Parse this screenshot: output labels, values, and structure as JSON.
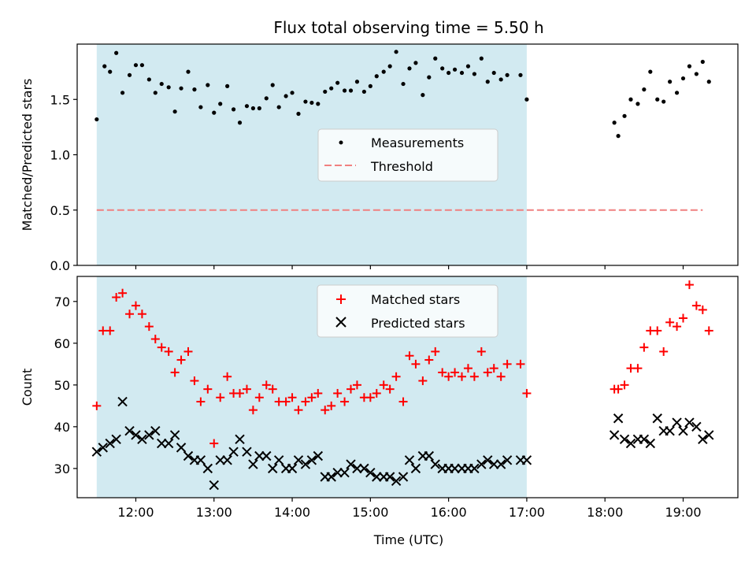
{
  "title": "Flux total observing time = 5.50 h",
  "shade_color": "#add8e6",
  "chart_data": [
    {
      "type": "scatter",
      "ylabel": "Matched/Predicted stars",
      "xlabel": "",
      "xlim": [
        11.25,
        19.7
      ],
      "ylim": [
        0.0,
        2.0
      ],
      "yticks": [
        0.0,
        0.5,
        1.0,
        1.5
      ],
      "ytick_labels": [
        "0.0",
        "0.5",
        "1.0",
        "1.5"
      ],
      "shaded_span": [
        11.5,
        17.0
      ],
      "legend": {
        "placement": "center-right",
        "entries": [
          {
            "label": "Measurements",
            "marker": "dot",
            "color": "#000000"
          },
          {
            "label": "Threshold",
            "marker": "dashed-line",
            "color": "#f08080"
          }
        ]
      },
      "threshold": {
        "value": 0.5,
        "x": [
          11.5,
          19.25
        ],
        "color": "#f08080"
      },
      "series": [
        {
          "name": "Measurements",
          "color": "#000000",
          "points": [
            [
              11.5,
              1.32
            ],
            [
              11.6,
              1.8
            ],
            [
              11.67,
              1.75
            ],
            [
              11.75,
              1.92
            ],
            [
              11.83,
              1.56
            ],
            [
              11.92,
              1.72
            ],
            [
              12.0,
              1.81
            ],
            [
              12.08,
              1.81
            ],
            [
              12.17,
              1.68
            ],
            [
              12.25,
              1.56
            ],
            [
              12.33,
              1.64
            ],
            [
              12.42,
              1.61
            ],
            [
              12.5,
              1.39
            ],
            [
              12.58,
              1.6
            ],
            [
              12.67,
              1.75
            ],
            [
              12.75,
              1.59
            ],
            [
              12.83,
              1.43
            ],
            [
              12.92,
              1.63
            ],
            [
              13.0,
              1.38
            ],
            [
              13.08,
              1.46
            ],
            [
              13.17,
              1.62
            ],
            [
              13.25,
              1.41
            ],
            [
              13.33,
              1.29
            ],
            [
              13.42,
              1.44
            ],
            [
              13.5,
              1.42
            ],
            [
              13.58,
              1.42
            ],
            [
              13.67,
              1.51
            ],
            [
              13.75,
              1.63
            ],
            [
              13.83,
              1.43
            ],
            [
              13.92,
              1.53
            ],
            [
              14.0,
              1.56
            ],
            [
              14.08,
              1.37
            ],
            [
              14.17,
              1.48
            ],
            [
              14.25,
              1.47
            ],
            [
              14.33,
              1.46
            ],
            [
              14.42,
              1.57
            ],
            [
              14.5,
              1.6
            ],
            [
              14.58,
              1.65
            ],
            [
              14.67,
              1.58
            ],
            [
              14.75,
              1.58
            ],
            [
              14.83,
              1.66
            ],
            [
              14.92,
              1.57
            ],
            [
              15.0,
              1.62
            ],
            [
              15.08,
              1.71
            ],
            [
              15.17,
              1.75
            ],
            [
              15.25,
              1.8
            ],
            [
              15.33,
              1.93
            ],
            [
              15.42,
              1.64
            ],
            [
              15.5,
              1.78
            ],
            [
              15.58,
              1.83
            ],
            [
              15.67,
              1.54
            ],
            [
              15.75,
              1.7
            ],
            [
              15.83,
              1.87
            ],
            [
              15.92,
              1.78
            ],
            [
              16.0,
              1.74
            ],
            [
              16.08,
              1.77
            ],
            [
              16.17,
              1.74
            ],
            [
              16.25,
              1.8
            ],
            [
              16.33,
              1.73
            ],
            [
              16.42,
              1.87
            ],
            [
              16.5,
              1.66
            ],
            [
              16.58,
              1.74
            ],
            [
              16.67,
              1.68
            ],
            [
              16.75,
              1.72
            ],
            [
              16.92,
              1.72
            ],
            [
              17.0,
              1.5
            ],
            [
              18.12,
              1.29
            ],
            [
              18.17,
              1.17
            ],
            [
              18.25,
              1.35
            ],
            [
              18.33,
              1.5
            ],
            [
              18.42,
              1.46
            ],
            [
              18.5,
              1.59
            ],
            [
              18.58,
              1.75
            ],
            [
              18.67,
              1.5
            ],
            [
              18.75,
              1.48
            ],
            [
              18.83,
              1.66
            ],
            [
              18.92,
              1.56
            ],
            [
              19.0,
              1.69
            ],
            [
              19.08,
              1.8
            ],
            [
              19.17,
              1.73
            ],
            [
              19.25,
              1.84
            ],
            [
              19.33,
              1.66
            ]
          ]
        }
      ]
    },
    {
      "type": "scatter",
      "ylabel": "Count",
      "xlabel": "Time (UTC)",
      "xlim": [
        11.25,
        19.7
      ],
      "ylim": [
        23.0,
        76.0
      ],
      "yticks": [
        30,
        40,
        50,
        60,
        70
      ],
      "ytick_labels": [
        "30",
        "40",
        "50",
        "60",
        "70"
      ],
      "xticks": [
        12,
        13,
        14,
        15,
        16,
        17,
        18,
        19
      ],
      "xtick_labels": [
        "12:00",
        "13:00",
        "14:00",
        "15:00",
        "16:00",
        "17:00",
        "18:00",
        "19:00"
      ],
      "shaded_span": [
        11.5,
        17.0
      ],
      "legend": {
        "placement": "top-center",
        "entries": [
          {
            "label": "Matched stars",
            "marker": "plus",
            "color": "#ff0000"
          },
          {
            "label": "Predicted stars",
            "marker": "x",
            "color": "#000000"
          }
        ]
      },
      "series": [
        {
          "name": "Matched stars",
          "marker": "plus",
          "color": "#ff0000",
          "points": [
            [
              11.5,
              45
            ],
            [
              11.58,
              63
            ],
            [
              11.67,
              63
            ],
            [
              11.75,
              71
            ],
            [
              11.83,
              72
            ],
            [
              11.92,
              67
            ],
            [
              12.0,
              69
            ],
            [
              12.08,
              67
            ],
            [
              12.17,
              64
            ],
            [
              12.25,
              61
            ],
            [
              12.33,
              59
            ],
            [
              12.42,
              58
            ],
            [
              12.5,
              53
            ],
            [
              12.58,
              56
            ],
            [
              12.67,
              58
            ],
            [
              12.75,
              51
            ],
            [
              12.83,
              46
            ],
            [
              12.92,
              49
            ],
            [
              13.0,
              36
            ],
            [
              13.08,
              47
            ],
            [
              13.17,
              52
            ],
            [
              13.25,
              48
            ],
            [
              13.33,
              48
            ],
            [
              13.42,
              49
            ],
            [
              13.5,
              44
            ],
            [
              13.58,
              47
            ],
            [
              13.67,
              50
            ],
            [
              13.75,
              49
            ],
            [
              13.83,
              46
            ],
            [
              13.92,
              46
            ],
            [
              14.0,
              47
            ],
            [
              14.08,
              44
            ],
            [
              14.17,
              46
            ],
            [
              14.25,
              47
            ],
            [
              14.33,
              48
            ],
            [
              14.42,
              44
            ],
            [
              14.5,
              45
            ],
            [
              14.58,
              48
            ],
            [
              14.67,
              46
            ],
            [
              14.75,
              49
            ],
            [
              14.83,
              50
            ],
            [
              14.92,
              47
            ],
            [
              15.0,
              47
            ],
            [
              15.08,
              48
            ],
            [
              15.17,
              50
            ],
            [
              15.25,
              49
            ],
            [
              15.33,
              52
            ],
            [
              15.42,
              46
            ],
            [
              15.5,
              57
            ],
            [
              15.58,
              55
            ],
            [
              15.67,
              51
            ],
            [
              15.75,
              56
            ],
            [
              15.83,
              58
            ],
            [
              15.92,
              53
            ],
            [
              16.0,
              52
            ],
            [
              16.08,
              53
            ],
            [
              16.17,
              52
            ],
            [
              16.25,
              54
            ],
            [
              16.33,
              52
            ],
            [
              16.42,
              58
            ],
            [
              16.5,
              53
            ],
            [
              16.58,
              54
            ],
            [
              16.67,
              52
            ],
            [
              16.75,
              55
            ],
            [
              16.92,
              55
            ],
            [
              17.0,
              48
            ],
            [
              18.12,
              49
            ],
            [
              18.17,
              49
            ],
            [
              18.25,
              50
            ],
            [
              18.33,
              54
            ],
            [
              18.42,
              54
            ],
            [
              18.5,
              59
            ],
            [
              18.58,
              63
            ],
            [
              18.67,
              63
            ],
            [
              18.75,
              58
            ],
            [
              18.83,
              65
            ],
            [
              18.92,
              64
            ],
            [
              19.0,
              66
            ],
            [
              19.08,
              74
            ],
            [
              19.17,
              69
            ],
            [
              19.25,
              68
            ],
            [
              19.33,
              63
            ]
          ]
        },
        {
          "name": "Predicted stars",
          "marker": "x",
          "color": "#000000",
          "points": [
            [
              11.5,
              34
            ],
            [
              11.58,
              35
            ],
            [
              11.67,
              36
            ],
            [
              11.75,
              37
            ],
            [
              11.83,
              46
            ],
            [
              11.92,
              39
            ],
            [
              12.0,
              38
            ],
            [
              12.08,
              37
            ],
            [
              12.17,
              38
            ],
            [
              12.25,
              39
            ],
            [
              12.33,
              36
            ],
            [
              12.42,
              36
            ],
            [
              12.5,
              38
            ],
            [
              12.58,
              35
            ],
            [
              12.67,
              33
            ],
            [
              12.75,
              32
            ],
            [
              12.83,
              32
            ],
            [
              12.92,
              30
            ],
            [
              13.0,
              26
            ],
            [
              13.08,
              32
            ],
            [
              13.17,
              32
            ],
            [
              13.25,
              34
            ],
            [
              13.33,
              37
            ],
            [
              13.42,
              34
            ],
            [
              13.5,
              31
            ],
            [
              13.58,
              33
            ],
            [
              13.67,
              33
            ],
            [
              13.75,
              30
            ],
            [
              13.83,
              32
            ],
            [
              13.92,
              30
            ],
            [
              14.0,
              30
            ],
            [
              14.08,
              32
            ],
            [
              14.17,
              31
            ],
            [
              14.25,
              32
            ],
            [
              14.33,
              33
            ],
            [
              14.42,
              28
            ],
            [
              14.5,
              28
            ],
            [
              14.58,
              29
            ],
            [
              14.67,
              29
            ],
            [
              14.75,
              31
            ],
            [
              14.83,
              30
            ],
            [
              14.92,
              30
            ],
            [
              15.0,
              29
            ],
            [
              15.08,
              28
            ],
            [
              15.17,
              28
            ],
            [
              15.25,
              28
            ],
            [
              15.33,
              27
            ],
            [
              15.42,
              28
            ],
            [
              15.5,
              32
            ],
            [
              15.58,
              30
            ],
            [
              15.67,
              33
            ],
            [
              15.75,
              33
            ],
            [
              15.83,
              31
            ],
            [
              15.92,
              30
            ],
            [
              16.0,
              30
            ],
            [
              16.08,
              30
            ],
            [
              16.17,
              30
            ],
            [
              16.25,
              30
            ],
            [
              16.33,
              30
            ],
            [
              16.42,
              31
            ],
            [
              16.5,
              32
            ],
            [
              16.58,
              31
            ],
            [
              16.67,
              31
            ],
            [
              16.75,
              32
            ],
            [
              16.92,
              32
            ],
            [
              17.0,
              32
            ],
            [
              18.12,
              38
            ],
            [
              18.17,
              42
            ],
            [
              18.25,
              37
            ],
            [
              18.33,
              36
            ],
            [
              18.42,
              37
            ],
            [
              18.5,
              37
            ],
            [
              18.58,
              36
            ],
            [
              18.67,
              42
            ],
            [
              18.75,
              39
            ],
            [
              18.83,
              39
            ],
            [
              18.92,
              41
            ],
            [
              19.0,
              39
            ],
            [
              19.08,
              41
            ],
            [
              19.17,
              40
            ],
            [
              19.25,
              37
            ],
            [
              19.33,
              38
            ]
          ]
        }
      ]
    }
  ]
}
